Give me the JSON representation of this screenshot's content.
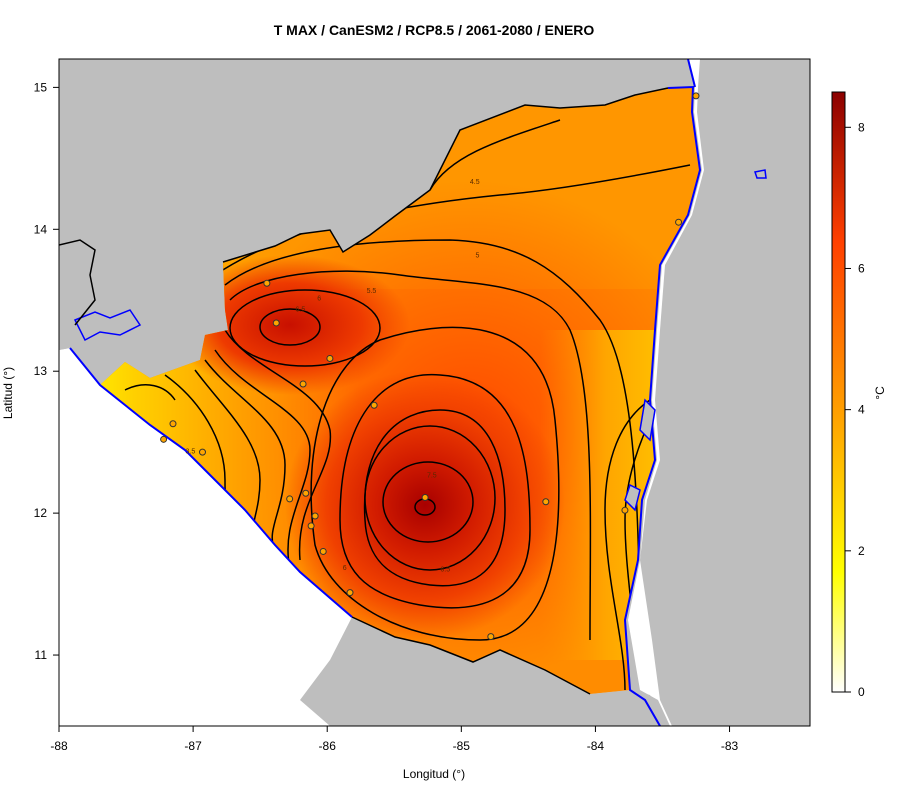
{
  "chart_data": {
    "type": "heatmap",
    "title": "T MAX / CanESM2 / RCP8.5 / 2061-2080 / ENERO",
    "xlabel": "Longitud (°)",
    "ylabel": "Latitud (°)",
    "xlim": [
      -88,
      -82.4
    ],
    "ylim": [
      10.5,
      15.2
    ],
    "xticks": [
      -88,
      -87,
      -86,
      -85,
      -84,
      -83
    ],
    "yticks": [
      11,
      12,
      13,
      14,
      15
    ],
    "colorbar": {
      "label": "°C",
      "range": [
        0,
        8.5
      ],
      "ticks": [
        0,
        2,
        4,
        6,
        8
      ],
      "colors": [
        "#ffffff",
        "#ffff00",
        "#ffa500",
        "#ff4500",
        "#8b0000"
      ]
    },
    "contour_labels": [
      {
        "text": "4.5",
        "lon": -84.9,
        "lat": 14.32
      },
      {
        "text": "5",
        "lon": -84.88,
        "lat": 13.8
      },
      {
        "text": "5.5",
        "lon": -85.67,
        "lat": 13.55
      },
      {
        "text": "6",
        "lon": -86.06,
        "lat": 13.5
      },
      {
        "text": "6.5",
        "lon": -86.2,
        "lat": 13.42
      },
      {
        "text": "3.5",
        "lon": -87.02,
        "lat": 12.42
      },
      {
        "text": "6",
        "lon": -85.87,
        "lat": 11.6
      },
      {
        "text": "6.5",
        "lon": -85.12,
        "lat": 11.59
      },
      {
        "text": "7.5",
        "lon": -85.22,
        "lat": 12.25
      }
    ],
    "stations": [
      {
        "lon": -86.45,
        "lat": 13.62
      },
      {
        "lon": -86.38,
        "lat": 13.34
      },
      {
        "lon": -85.98,
        "lat": 13.09
      },
      {
        "lon": -86.18,
        "lat": 12.91
      },
      {
        "lon": -85.65,
        "lat": 12.76
      },
      {
        "lon": -87.15,
        "lat": 12.63
      },
      {
        "lon": -87.22,
        "lat": 12.52
      },
      {
        "lon": -86.93,
        "lat": 12.43
      },
      {
        "lon": -86.16,
        "lat": 12.14
      },
      {
        "lon": -86.28,
        "lat": 12.1
      },
      {
        "lon": -85.27,
        "lat": 12.11
      },
      {
        "lon": -86.09,
        "lat": 11.98
      },
      {
        "lon": -86.12,
        "lat": 11.91
      },
      {
        "lon": -84.37,
        "lat": 12.08
      },
      {
        "lon": -83.78,
        "lat": 12.02
      },
      {
        "lon": -86.03,
        "lat": 11.73
      },
      {
        "lon": -85.83,
        "lat": 11.44
      },
      {
        "lon": -84.78,
        "lat": 11.13
      },
      {
        "lon": -83.38,
        "lat": 14.05
      },
      {
        "lon": -83.25,
        "lat": 14.94
      }
    ],
    "hotspots": [
      {
        "lon": -85.2,
        "lat": 12.05,
        "value": 8.0
      },
      {
        "lon": -86.25,
        "lat": 13.3,
        "value": 6.8
      }
    ]
  }
}
